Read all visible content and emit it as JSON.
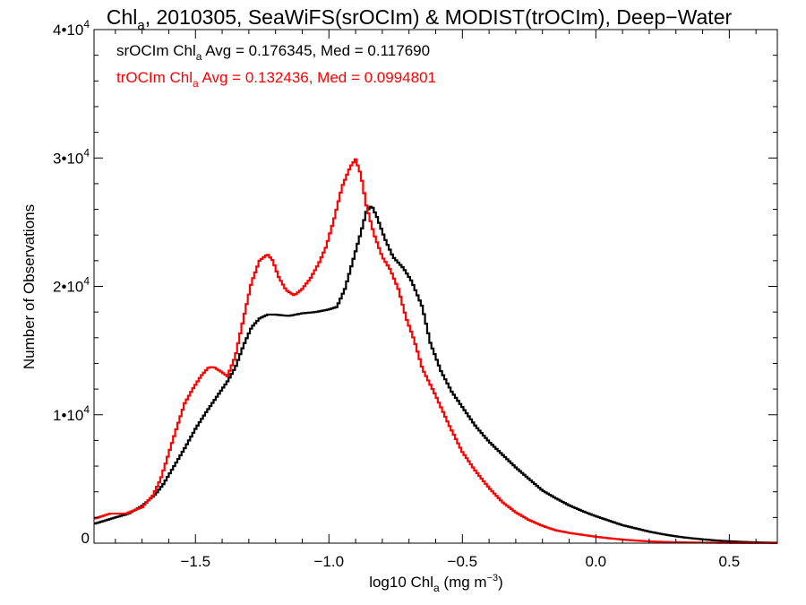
{
  "chart_data": {
    "type": "line",
    "title_parts": {
      "pre": "Chl",
      "sub": "a",
      "post": ", 2010305, SeaWiFS(srOCIm) & MODIST(trOCIm), Deep−Water"
    },
    "xlabel_parts": {
      "pre": "log10 Chl",
      "sub": "a",
      "post": " (mg m",
      "sup": "−3",
      "end": ")"
    },
    "ylabel": "Number of Observations",
    "xlim": [
      -1.88,
      0.68
    ],
    "ylim": [
      0,
      40000
    ],
    "x_ticks": [
      -1.5,
      -1.0,
      -0.5,
      0.0,
      0.5
    ],
    "x_tick_labels": [
      "−1.5",
      "−1.0",
      "−0.5",
      "0.0",
      "0.5"
    ],
    "y_ticks": [
      0,
      10000,
      20000,
      30000,
      40000
    ],
    "y_tick_labels": [
      {
        "mant": "0",
        "exp": ""
      },
      {
        "mant": "1•10",
        "exp": "4"
      },
      {
        "mant": "2•10",
        "exp": "4"
      },
      {
        "mant": "3•10",
        "exp": "4"
      },
      {
        "mant": "4•10",
        "exp": "4"
      }
    ],
    "annotations": [
      {
        "pre": "srOCIm Chl",
        "sub": "a",
        "post": " Avg = 0.176345, Med = 0.117690",
        "color": "#000000"
      },
      {
        "pre": "trOCIm Chl",
        "sub": "a",
        "post": " Avg = 0.132436, Med = 0.0994801",
        "color": "#ff0000"
      }
    ],
    "series": [
      {
        "color": "#000000",
        "points": [
          [
            -1.88,
            1500
          ],
          [
            -1.8,
            2000
          ],
          [
            -1.75,
            2300
          ],
          [
            -1.7,
            2900
          ],
          [
            -1.65,
            3800
          ],
          [
            -1.62,
            4600
          ],
          [
            -1.58,
            6000
          ],
          [
            -1.54,
            7400
          ],
          [
            -1.5,
            8900
          ],
          [
            -1.46,
            10200
          ],
          [
            -1.42,
            11400
          ],
          [
            -1.38,
            12600
          ],
          [
            -1.35,
            13700
          ],
          [
            -1.32,
            15400
          ],
          [
            -1.29,
            16800
          ],
          [
            -1.26,
            17500
          ],
          [
            -1.23,
            17800
          ],
          [
            -1.2,
            17800
          ],
          [
            -1.15,
            17700
          ],
          [
            -1.1,
            17900
          ],
          [
            -1.05,
            18000
          ],
          [
            -1.0,
            18200
          ],
          [
            -0.97,
            18400
          ],
          [
            -0.94,
            19800
          ],
          [
            -0.91,
            22000
          ],
          [
            -0.88,
            24200
          ],
          [
            -0.86,
            25800
          ],
          [
            -0.84,
            26300
          ],
          [
            -0.82,
            25400
          ],
          [
            -0.79,
            23700
          ],
          [
            -0.76,
            22300
          ],
          [
            -0.72,
            21400
          ],
          [
            -0.69,
            20400
          ],
          [
            -0.65,
            18400
          ],
          [
            -0.62,
            15600
          ],
          [
            -0.58,
            13400
          ],
          [
            -0.54,
            11800
          ],
          [
            -0.5,
            10600
          ],
          [
            -0.45,
            9100
          ],
          [
            -0.4,
            7900
          ],
          [
            -0.35,
            6900
          ],
          [
            -0.3,
            5900
          ],
          [
            -0.25,
            5000
          ],
          [
            -0.2,
            4100
          ],
          [
            -0.15,
            3500
          ],
          [
            -0.1,
            2950
          ],
          [
            -0.05,
            2500
          ],
          [
            0.0,
            2100
          ],
          [
            0.05,
            1750
          ],
          [
            0.1,
            1400
          ],
          [
            0.15,
            1150
          ],
          [
            0.2,
            900
          ],
          [
            0.25,
            700
          ],
          [
            0.3,
            530
          ],
          [
            0.35,
            400
          ],
          [
            0.4,
            300
          ],
          [
            0.45,
            210
          ],
          [
            0.5,
            150
          ],
          [
            0.55,
            100
          ],
          [
            0.6,
            60
          ],
          [
            0.68,
            30
          ]
        ]
      },
      {
        "color": "#ff0000",
        "points": [
          [
            -1.88,
            1900
          ],
          [
            -1.82,
            2300
          ],
          [
            -1.76,
            2300
          ],
          [
            -1.7,
            2800
          ],
          [
            -1.66,
            3700
          ],
          [
            -1.63,
            5000
          ],
          [
            -1.6,
            7000
          ],
          [
            -1.57,
            9000
          ],
          [
            -1.54,
            10900
          ],
          [
            -1.51,
            12000
          ],
          [
            -1.48,
            13000
          ],
          [
            -1.45,
            13700
          ],
          [
            -1.43,
            13700
          ],
          [
            -1.4,
            13300
          ],
          [
            -1.38,
            13000
          ],
          [
            -1.35,
            14600
          ],
          [
            -1.32,
            17500
          ],
          [
            -1.29,
            20300
          ],
          [
            -1.26,
            22000
          ],
          [
            -1.23,
            22500
          ],
          [
            -1.21,
            22000
          ],
          [
            -1.19,
            20800
          ],
          [
            -1.16,
            19700
          ],
          [
            -1.13,
            19300
          ],
          [
            -1.1,
            19800
          ],
          [
            -1.07,
            20600
          ],
          [
            -1.04,
            21700
          ],
          [
            -1.01,
            23100
          ],
          [
            -0.98,
            25300
          ],
          [
            -0.95,
            27800
          ],
          [
            -0.92,
            29300
          ],
          [
            -0.9,
            29900
          ],
          [
            -0.88,
            28700
          ],
          [
            -0.86,
            26300
          ],
          [
            -0.83,
            24000
          ],
          [
            -0.8,
            22300
          ],
          [
            -0.77,
            21300
          ],
          [
            -0.74,
            19800
          ],
          [
            -0.71,
            17500
          ],
          [
            -0.68,
            15800
          ],
          [
            -0.65,
            13600
          ],
          [
            -0.6,
            11500
          ],
          [
            -0.55,
            9200
          ],
          [
            -0.5,
            7100
          ],
          [
            -0.45,
            5600
          ],
          [
            -0.4,
            4300
          ],
          [
            -0.35,
            3200
          ],
          [
            -0.3,
            2400
          ],
          [
            -0.25,
            1800
          ],
          [
            -0.2,
            1350
          ],
          [
            -0.15,
            1000
          ],
          [
            -0.1,
            800
          ],
          [
            -0.05,
            650
          ],
          [
            0.0,
            500
          ],
          [
            0.05,
            380
          ],
          [
            0.1,
            280
          ],
          [
            0.15,
            200
          ],
          [
            0.2,
            140
          ],
          [
            0.25,
            100
          ],
          [
            0.3,
            70
          ],
          [
            0.4,
            40
          ],
          [
            0.5,
            20
          ],
          [
            0.68,
            10
          ]
        ]
      }
    ]
  }
}
